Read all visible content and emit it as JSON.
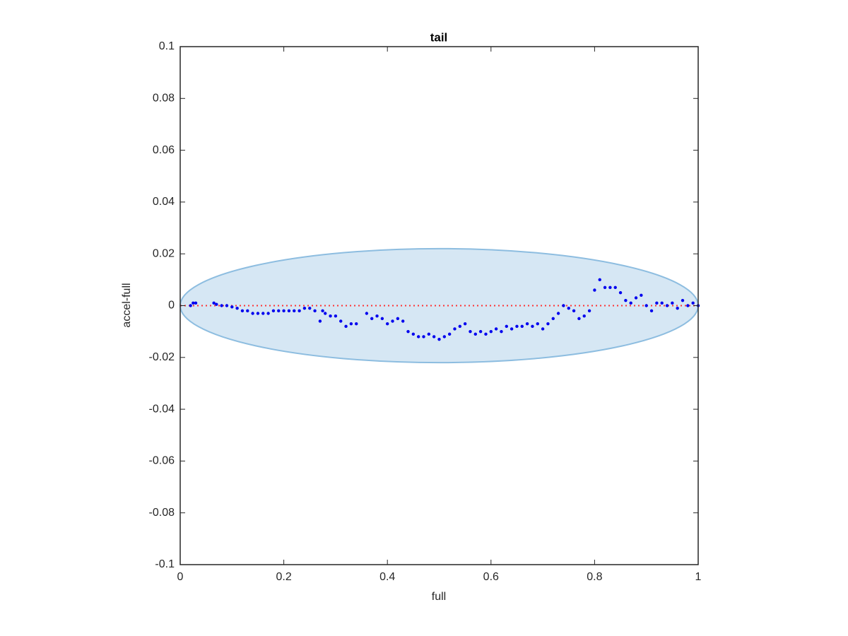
{
  "chart_data": {
    "type": "scatter",
    "title": "tail",
    "xlabel": "full",
    "ylabel": "accel-full",
    "xlim": [
      0,
      1
    ],
    "ylim": [
      -0.1,
      0.1
    ],
    "xticks": [
      0,
      0.2,
      0.4,
      0.6,
      0.8,
      1
    ],
    "yticks": [
      -0.1,
      -0.08,
      -0.06,
      -0.04,
      -0.02,
      0,
      0.02,
      0.04,
      0.06,
      0.08,
      0.1
    ],
    "color": "#0000ee",
    "ellipse": {
      "cx": 0.5,
      "cy": 0,
      "rx": 0.5,
      "ry": 0.022,
      "fill": "#d6e7f4",
      "stroke": "#8dbde0"
    },
    "hline": {
      "value": 0,
      "color": "#ff3333"
    },
    "x": [
      0.02,
      0.025,
      0.03,
      0.065,
      0.07,
      0.08,
      0.09,
      0.1,
      0.11,
      0.12,
      0.13,
      0.14,
      0.15,
      0.16,
      0.17,
      0.18,
      0.19,
      0.2,
      0.21,
      0.22,
      0.23,
      0.24,
      0.25,
      0.26,
      0.27,
      0.275,
      0.28,
      0.29,
      0.3,
      0.31,
      0.32,
      0.33,
      0.34,
      0.36,
      0.37,
      0.38,
      0.39,
      0.4,
      0.41,
      0.42,
      0.43,
      0.44,
      0.45,
      0.46,
      0.47,
      0.48,
      0.49,
      0.5,
      0.51,
      0.52,
      0.53,
      0.54,
      0.55,
      0.56,
      0.57,
      0.58,
      0.59,
      0.6,
      0.61,
      0.62,
      0.63,
      0.64,
      0.65,
      0.66,
      0.67,
      0.68,
      0.69,
      0.7,
      0.71,
      0.72,
      0.73,
      0.74,
      0.75,
      0.76,
      0.77,
      0.78,
      0.79,
      0.8,
      0.81,
      0.82,
      0.83,
      0.84,
      0.85,
      0.86,
      0.87,
      0.88,
      0.89,
      0.9,
      0.91,
      0.92,
      0.93,
      0.94,
      0.95,
      0.96,
      0.97,
      0.98,
      0.99,
      1.0
    ],
    "values": [
      0,
      0.001,
      0.001,
      0.001,
      0.0005,
      0,
      0,
      -0.0005,
      -0.001,
      -0.002,
      -0.002,
      -0.003,
      -0.003,
      -0.003,
      -0.003,
      -0.002,
      -0.002,
      -0.002,
      -0.002,
      -0.002,
      -0.002,
      -0.001,
      -0.001,
      -0.002,
      -0.006,
      -0.002,
      -0.003,
      -0.004,
      -0.004,
      -0.006,
      -0.008,
      -0.007,
      -0.007,
      -0.003,
      -0.005,
      -0.004,
      -0.005,
      -0.007,
      -0.006,
      -0.005,
      -0.006,
      -0.01,
      -0.011,
      -0.012,
      -0.012,
      -0.011,
      -0.012,
      -0.013,
      -0.012,
      -0.011,
      -0.009,
      -0.008,
      -0.007,
      -0.01,
      -0.011,
      -0.01,
      -0.011,
      -0.01,
      -0.009,
      -0.01,
      -0.008,
      -0.009,
      -0.008,
      -0.008,
      -0.007,
      -0.008,
      -0.007,
      -0.009,
      -0.007,
      -0.005,
      -0.003,
      0,
      -0.001,
      -0.002,
      -0.005,
      -0.004,
      -0.002,
      0.006,
      0.01,
      0.007,
      0.007,
      0.007,
      0.005,
      0.002,
      0.001,
      0.003,
      0.004,
      0,
      -0.002,
      0.001,
      0.001,
      0,
      0.001,
      -0.001,
      0.002,
      0,
      0.001,
      0
    ]
  }
}
